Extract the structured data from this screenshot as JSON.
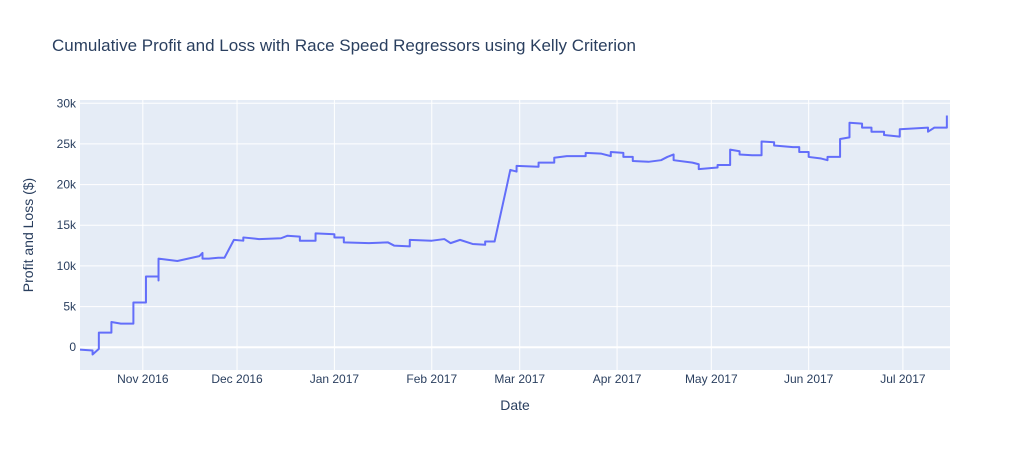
{
  "chart_data": {
    "type": "line",
    "title": "Cumulative Profit and Loss with Race Speed Regressors using Kelly Criterion",
    "xlabel": "Date",
    "ylabel": "Profit and Loss ($)",
    "color": "#636efa",
    "grid": true,
    "xlim": [
      "2016-10-12",
      "2017-07-16"
    ],
    "xticks": [
      {
        "value": "2016-11-01",
        "label": "Nov 2016"
      },
      {
        "value": "2016-12-01",
        "label": "Dec 2016"
      },
      {
        "value": "2017-01-01",
        "label": "Jan 2017"
      },
      {
        "value": "2017-02-01",
        "label": "Feb 2017"
      },
      {
        "value": "2017-03-01",
        "label": "Mar 2017"
      },
      {
        "value": "2017-04-01",
        "label": "Apr 2017"
      },
      {
        "value": "2017-05-01",
        "label": "May 2017"
      },
      {
        "value": "2017-06-01",
        "label": "Jun 2017"
      },
      {
        "value": "2017-07-01",
        "label": "Jul 2017"
      }
    ],
    "ylim": [
      -2800,
      30400
    ],
    "yticks": [
      0,
      {
        "value": 5000,
        "label": "5k"
      },
      {
        "value": 10000,
        "label": "10k"
      },
      {
        "value": 15000,
        "label": "15k"
      },
      {
        "value": 20000,
        "label": "20k"
      },
      {
        "value": 25000,
        "label": "25k"
      },
      {
        "value": 30000,
        "label": "30k"
      }
    ],
    "x": [
      "2016-10-12",
      "2016-10-16",
      "2016-10-16",
      "2016-10-18",
      "2016-10-18",
      "2016-10-22",
      "2016-10-22",
      "2016-10-25",
      "2016-10-29",
      "2016-10-29",
      "2016-11-02",
      "2016-11-02",
      "2016-11-06",
      "2016-11-06",
      "2016-11-06",
      "2016-11-12",
      "2016-11-19",
      "2016-11-20",
      "2016-11-20",
      "2016-11-22",
      "2016-11-25",
      "2016-11-27",
      "2016-11-30",
      "2016-12-03",
      "2016-12-03",
      "2016-12-08",
      "2016-12-15",
      "2016-12-17",
      "2016-12-21",
      "2016-12-21",
      "2016-12-26",
      "2016-12-26",
      "2017-01-01",
      "2017-01-01",
      "2017-01-04",
      "2017-01-04",
      "2017-01-12",
      "2017-01-18",
      "2017-01-20",
      "2017-01-25",
      "2017-01-25",
      "2017-02-01",
      "2017-02-05",
      "2017-02-07",
      "2017-02-10",
      "2017-02-14",
      "2017-02-18",
      "2017-02-18",
      "2017-02-21",
      "2017-02-25",
      "2017-02-26",
      "2017-02-28",
      "2017-02-28",
      "2017-03-07",
      "2017-03-07",
      "2017-03-12",
      "2017-03-12",
      "2017-03-16",
      "2017-03-22",
      "2017-03-22",
      "2017-03-27",
      "2017-03-30",
      "2017-03-30",
      "2017-04-03",
      "2017-04-03",
      "2017-04-06",
      "2017-04-06",
      "2017-04-11",
      "2017-04-15",
      "2017-04-17",
      "2017-04-19",
      "2017-04-19",
      "2017-04-25",
      "2017-04-27",
      "2017-04-27",
      "2017-05-03",
      "2017-05-03",
      "2017-05-07",
      "2017-05-07",
      "2017-05-10",
      "2017-05-10",
      "2017-05-14",
      "2017-05-17",
      "2017-05-17",
      "2017-05-21",
      "2017-05-21",
      "2017-05-27",
      "2017-05-29",
      "2017-05-29",
      "2017-06-01",
      "2017-06-01",
      "2017-06-05",
      "2017-06-07",
      "2017-06-07",
      "2017-06-11",
      "2017-06-11",
      "2017-06-14",
      "2017-06-14",
      "2017-06-18",
      "2017-06-18",
      "2017-06-21",
      "2017-06-21",
      "2017-06-25",
      "2017-06-25",
      "2017-06-30",
      "2017-06-30",
      "2017-07-09",
      "2017-07-09",
      "2017-07-11",
      "2017-07-15",
      "2017-07-15"
    ],
    "values": [
      -300,
      -400,
      -900,
      -200,
      1800,
      1800,
      3100,
      2900,
      2900,
      5500,
      5500,
      8700,
      8700,
      8200,
      10900,
      10600,
      11200,
      11600,
      10900,
      10900,
      11000,
      11000,
      13200,
      13100,
      13500,
      13300,
      13400,
      13700,
      13600,
      13100,
      13100,
      14000,
      13900,
      13500,
      13500,
      12900,
      12800,
      12900,
      12500,
      12400,
      13200,
      13100,
      13300,
      12800,
      13200,
      12700,
      12600,
      13000,
      13000,
      20000,
      21800,
      21600,
      22300,
      22200,
      22700,
      22700,
      23300,
      23500,
      23500,
      23900,
      23800,
      23500,
      24000,
      23900,
      23400,
      23400,
      22900,
      22800,
      23000,
      23400,
      23700,
      23000,
      22700,
      22500,
      21900,
      22100,
      22400,
      22400,
      24300,
      24100,
      23700,
      23600,
      23600,
      25300,
      25200,
      24800,
      24600,
      24600,
      24000,
      24000,
      23400,
      23200,
      23000,
      23400,
      23400,
      25600,
      25800,
      27600,
      27500,
      27000,
      27000,
      26500,
      26500,
      26100,
      25900,
      26800,
      27000,
      26500,
      27000,
      27000,
      28500
    ]
  }
}
